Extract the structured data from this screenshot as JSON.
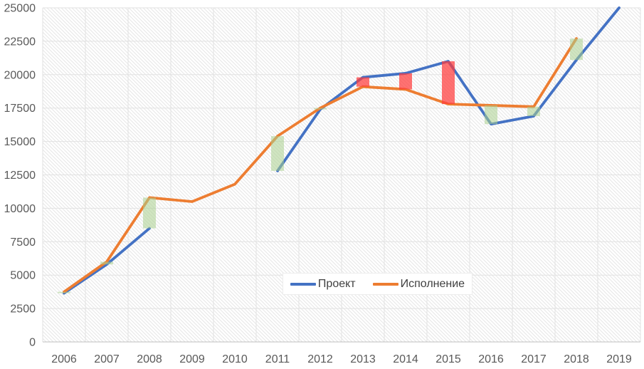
{
  "chart_data": {
    "type": "line",
    "title": "",
    "categories": [
      "2006",
      "2007",
      "2008",
      "2009",
      "2010",
      "2011",
      "2012",
      "2013",
      "2014",
      "2015",
      "2016",
      "2017",
      "2018",
      "2019"
    ],
    "series": [
      {
        "name": "Проект",
        "color": "#4472C4",
        "values": [
          3650,
          5800,
          8500,
          null,
          null,
          12800,
          17400,
          19800,
          20100,
          21000,
          16300,
          16900,
          21100,
          25000
        ]
      },
      {
        "name": "Исполнение",
        "color": "#ED7D31",
        "values": [
          3750,
          6000,
          10800,
          10500,
          11800,
          15400,
          17500,
          19100,
          18900,
          17800,
          17700,
          17600,
          22700,
          null
        ]
      }
    ],
    "y_axis": {
      "min": 0,
      "max": 25000,
      "step": 2500,
      "tick_labels": [
        "0",
        "2500",
        "5000",
        "7500",
        "10000",
        "12500",
        "15000",
        "17500",
        "20000",
        "22500",
        "25000"
      ]
    },
    "up_down_bars": {
      "up_color": "#A9D08E",
      "up_opacity": 0.55,
      "down_color": "#FF3B3B",
      "down_opacity": 0.72
    },
    "grid": {
      "horizontal": true,
      "vertical": true
    },
    "plot_background": "diagonal-hatch",
    "legend_position": "bottom-center-overlay"
  },
  "colors": {
    "grid": "#e2e2e2",
    "axis_line": "#bfbfbf",
    "hatch": "#e7e7e7",
    "tick_text": "#595959",
    "legend_text": "#404040",
    "background": "#ffffff"
  }
}
